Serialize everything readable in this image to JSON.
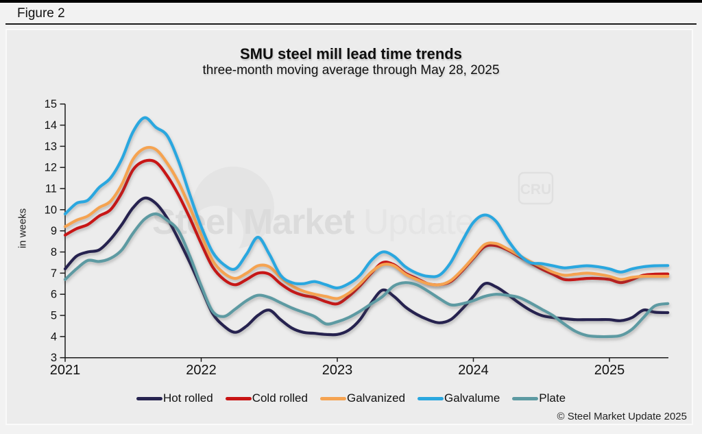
{
  "figure_label": "Figure 2",
  "footer": {
    "copyright": "© Steel Market Update 2025"
  },
  "watermark": {
    "text_bold": "Steel Market",
    "text_light": " Update",
    "badge": "CRU"
  },
  "chart_data": {
    "type": "line",
    "title": "SMU steel mill lead time trends",
    "subtitle": "three-month moving average through May 28, 2025",
    "ylabel": "in weeks",
    "ylim": [
      3,
      15
    ],
    "ytick_step": 1,
    "grid": false,
    "legend_position": "bottom",
    "x_start": "2021-01",
    "x_end": "2025-05",
    "x_tick_labels": [
      "2021",
      "2022",
      "2023",
      "2024",
      "2025"
    ],
    "months_per_tick": 12,
    "series": [
      {
        "name": "Hot rolled",
        "color": "#272450",
        "values": [
          7.2,
          7.8,
          8.0,
          8.1,
          8.6,
          9.3,
          10.1,
          10.55,
          10.3,
          9.6,
          8.6,
          7.5,
          6.3,
          5.1,
          4.5,
          4.2,
          4.5,
          5.0,
          5.25,
          4.8,
          4.4,
          4.2,
          4.15,
          4.1,
          4.1,
          4.3,
          4.8,
          5.6,
          6.2,
          5.9,
          5.4,
          5.05,
          4.8,
          4.65,
          4.8,
          5.3,
          5.9,
          6.5,
          6.35,
          6.0,
          5.6,
          5.25,
          5.0,
          4.9,
          4.85,
          4.8,
          4.8,
          4.8,
          4.8,
          4.75,
          4.9,
          5.25,
          5.15
        ]
      },
      {
        "name": "Cold rolled",
        "color": "#c81414",
        "values": [
          8.8,
          9.1,
          9.3,
          9.7,
          10.0,
          10.8,
          11.9,
          12.3,
          12.25,
          11.6,
          10.7,
          9.6,
          8.4,
          7.3,
          6.7,
          6.45,
          6.7,
          7.0,
          6.95,
          6.5,
          6.15,
          5.95,
          5.85,
          5.65,
          5.55,
          5.9,
          6.4,
          7.0,
          7.5,
          7.4,
          7.0,
          6.75,
          6.5,
          6.45,
          6.6,
          7.1,
          7.7,
          8.25,
          8.3,
          8.1,
          7.8,
          7.5,
          7.2,
          6.95,
          6.7,
          6.7,
          6.75,
          6.75,
          6.7,
          6.55,
          6.7,
          6.9,
          6.95
        ]
      },
      {
        "name": "Galvanized",
        "color": "#f5a351",
        "values": [
          9.2,
          9.5,
          9.7,
          10.1,
          10.4,
          11.2,
          12.4,
          12.9,
          12.85,
          12.2,
          11.3,
          10.1,
          8.8,
          7.6,
          7.0,
          6.75,
          7.0,
          7.35,
          7.3,
          6.8,
          6.4,
          6.15,
          6.0,
          5.9,
          5.8,
          6.05,
          6.5,
          7.05,
          7.4,
          7.35,
          6.95,
          6.7,
          6.5,
          6.45,
          6.65,
          7.15,
          7.75,
          8.35,
          8.4,
          8.15,
          7.85,
          7.55,
          7.3,
          7.05,
          6.9,
          6.95,
          7.0,
          6.95,
          6.85,
          6.7,
          6.8,
          6.85,
          6.85
        ]
      },
      {
        "name": "Galvalume",
        "color": "#2aa7df",
        "values": [
          9.8,
          10.3,
          10.45,
          11.05,
          11.5,
          12.4,
          13.7,
          14.35,
          13.9,
          13.5,
          12.3,
          10.7,
          9.2,
          8.0,
          7.4,
          7.2,
          7.9,
          8.7,
          7.9,
          6.9,
          6.55,
          6.5,
          6.6,
          6.45,
          6.3,
          6.5,
          6.9,
          7.6,
          8.0,
          7.8,
          7.3,
          7.0,
          6.85,
          6.9,
          7.5,
          8.5,
          9.4,
          9.75,
          9.45,
          8.6,
          7.9,
          7.5,
          7.45,
          7.35,
          7.25,
          7.3,
          7.35,
          7.3,
          7.2,
          7.05,
          7.2,
          7.3,
          7.35
        ]
      },
      {
        "name": "Plate",
        "color": "#5d9aa2",
        "values": [
          6.7,
          7.2,
          7.6,
          7.55,
          7.7,
          8.1,
          8.9,
          9.55,
          9.8,
          9.5,
          9.0,
          7.8,
          6.4,
          5.2,
          4.95,
          5.3,
          5.7,
          5.95,
          5.85,
          5.6,
          5.35,
          5.15,
          4.95,
          4.6,
          4.7,
          4.9,
          5.2,
          5.55,
          5.9,
          6.4,
          6.55,
          6.45,
          6.15,
          5.8,
          5.5,
          5.55,
          5.7,
          5.9,
          6.0,
          5.95,
          5.85,
          5.6,
          5.3,
          5.0,
          4.6,
          4.25,
          4.05,
          4.0,
          4.0,
          4.05,
          4.35,
          4.9,
          5.45
        ]
      }
    ]
  }
}
